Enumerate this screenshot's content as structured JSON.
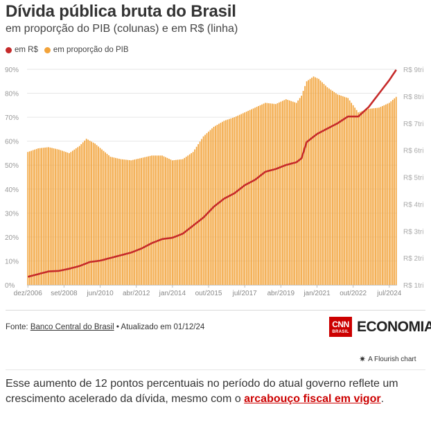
{
  "header": {
    "title": "Dívida pública bruta do Brasil",
    "subtitle": "em proporção do PIB (colunas) e em R$ (linha)"
  },
  "legend": {
    "items": [
      {
        "label": "em R$",
        "color": "#c62a2a"
      },
      {
        "label": "em proporção do PIB",
        "color": "#f2a33a"
      }
    ]
  },
  "chart_data": {
    "type": "bar",
    "title": "Dívida pública bruta do Brasil",
    "subtitle": "em proporção do PIB (colunas) e em R$ (linha)",
    "x_tick_labels": [
      "dez/2006",
      "set/2008",
      "jun/2010",
      "abr/2012",
      "jan/2014",
      "out/2015",
      "jul/2017",
      "abr/2019",
      "jan/2021",
      "out/2022",
      "jul/2024"
    ],
    "y_left": {
      "ticks": [
        "0%",
        "10%",
        "20%",
        "30%",
        "40%",
        "50%",
        "60%",
        "70%",
        "80%",
        "90%"
      ],
      "range": [
        0,
        90
      ]
    },
    "y_right": {
      "ticks": [
        "R$ 1tri",
        "R$ 2tri",
        "R$ 3tri",
        "R$ 4tri",
        "R$ 5tri",
        "R$ 6tri",
        "R$ 7tri",
        "R$ 8tri",
        "R$ 9tri"
      ],
      "range": [
        1,
        9
      ]
    },
    "series": [
      {
        "name": "em proporção do PIB",
        "kind": "bar",
        "axis": "left",
        "color": "#f2a33a",
        "anchors": [
          [
            "2006-12",
            55.5
          ],
          [
            "2007-06",
            57.0
          ],
          [
            "2007-12",
            57.5
          ],
          [
            "2008-06",
            56.5
          ],
          [
            "2008-12",
            55.0
          ],
          [
            "2009-06",
            58.0
          ],
          [
            "2009-10",
            61.0
          ],
          [
            "2010-03",
            59.0
          ],
          [
            "2010-12",
            53.5
          ],
          [
            "2011-06",
            52.5
          ],
          [
            "2011-12",
            52.0
          ],
          [
            "2012-06",
            53.0
          ],
          [
            "2012-12",
            54.0
          ],
          [
            "2013-06",
            54.0
          ],
          [
            "2013-12",
            52.0
          ],
          [
            "2014-06",
            52.5
          ],
          [
            "2014-12",
            55.5
          ],
          [
            "2015-06",
            62.0
          ],
          [
            "2015-12",
            66.0
          ],
          [
            "2016-06",
            68.5
          ],
          [
            "2016-12",
            70.0
          ],
          [
            "2017-06",
            72.0
          ],
          [
            "2017-12",
            74.0
          ],
          [
            "2018-06",
            76.0
          ],
          [
            "2018-12",
            75.5
          ],
          [
            "2019-06",
            77.5
          ],
          [
            "2019-12",
            76.0
          ],
          [
            "2020-03",
            79.0
          ],
          [
            "2020-06",
            85.0
          ],
          [
            "2020-10",
            87.0
          ],
          [
            "2021-01",
            86.0
          ],
          [
            "2021-06",
            82.5
          ],
          [
            "2021-12",
            79.5
          ],
          [
            "2022-06",
            78.0
          ],
          [
            "2022-12",
            72.0
          ],
          [
            "2023-06",
            73.5
          ],
          [
            "2023-12",
            74.0
          ],
          [
            "2024-06",
            76.0
          ],
          [
            "2024-10",
            78.5
          ]
        ]
      },
      {
        "name": "em R$",
        "kind": "line",
        "axis": "right",
        "color": "#c62a2a",
        "anchors": [
          [
            "2006-12",
            1.3
          ],
          [
            "2007-06",
            1.4
          ],
          [
            "2007-12",
            1.5
          ],
          [
            "2008-06",
            1.52
          ],
          [
            "2008-12",
            1.6
          ],
          [
            "2009-06",
            1.7
          ],
          [
            "2009-12",
            1.85
          ],
          [
            "2010-06",
            1.9
          ],
          [
            "2010-12",
            2.0
          ],
          [
            "2011-06",
            2.1
          ],
          [
            "2011-12",
            2.2
          ],
          [
            "2012-06",
            2.35
          ],
          [
            "2012-12",
            2.55
          ],
          [
            "2013-06",
            2.7
          ],
          [
            "2013-12",
            2.75
          ],
          [
            "2014-06",
            2.9
          ],
          [
            "2014-12",
            3.2
          ],
          [
            "2015-06",
            3.5
          ],
          [
            "2015-12",
            3.9
          ],
          [
            "2016-06",
            4.2
          ],
          [
            "2016-12",
            4.4
          ],
          [
            "2017-06",
            4.7
          ],
          [
            "2017-12",
            4.9
          ],
          [
            "2018-06",
            5.2
          ],
          [
            "2018-12",
            5.3
          ],
          [
            "2019-06",
            5.45
          ],
          [
            "2019-12",
            5.55
          ],
          [
            "2020-03",
            5.7
          ],
          [
            "2020-06",
            6.3
          ],
          [
            "2020-12",
            6.6
          ],
          [
            "2021-06",
            6.8
          ],
          [
            "2021-12",
            7.0
          ],
          [
            "2022-06",
            7.25
          ],
          [
            "2022-12",
            7.25
          ],
          [
            "2023-06",
            7.6
          ],
          [
            "2023-12",
            8.1
          ],
          [
            "2024-06",
            8.6
          ],
          [
            "2024-10",
            8.98
          ]
        ]
      }
    ]
  },
  "footer": {
    "source_prefix": "Fonte: ",
    "source_link": "Banco Central do Brasil",
    "updated": " • Atualizado em 01/12/24",
    "logo_cnn_top": "CNN",
    "logo_cnn_bottom": "BRASIL",
    "logo_economia": "ECONOMIA",
    "flourish": "A Flourish chart"
  },
  "article": {
    "text": "Esse aumento de 12 pontos percentuais no período do atual governo reflete um crescimento acelerado da dívida, mesmo com o ",
    "link": "arcabouço fiscal em vigor",
    "end": "."
  }
}
